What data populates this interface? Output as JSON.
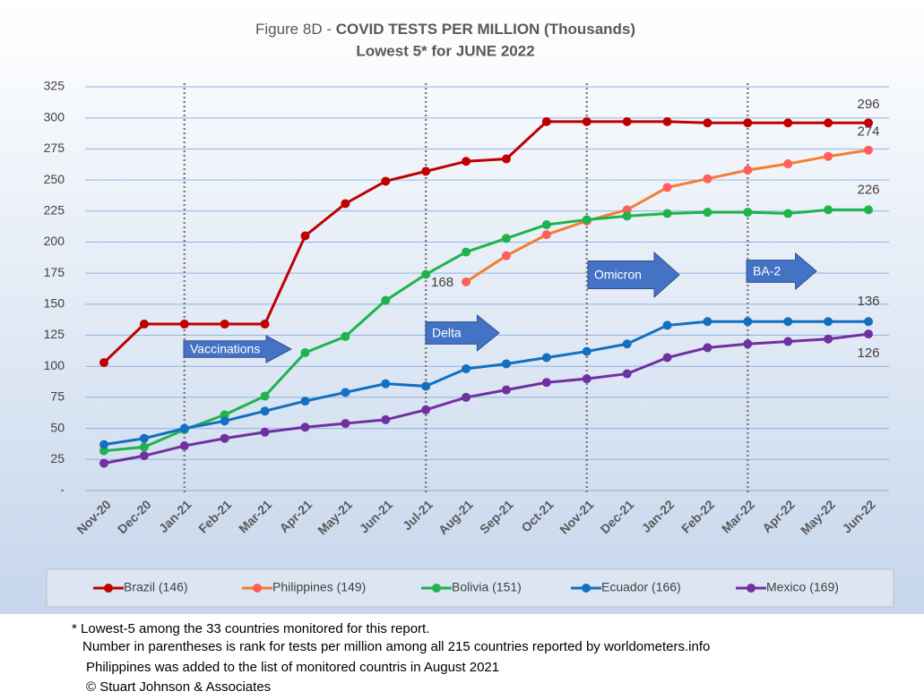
{
  "chart_data": {
    "type": "line",
    "title_prefix": "Figure 8D - ",
    "title": "COVID TESTS PER MILLION (Thousands)",
    "subtitle": "Lowest 5* for JUNE  2022",
    "categories": [
      "Nov-20",
      "Dec-20",
      "Jan-21",
      "Feb-21",
      "Mar-21",
      "Apr-21",
      "May-21",
      "Jun-21",
      "Jul-21",
      "Aug-21",
      "Sep-21",
      "Oct-21",
      "Nov-21",
      "Dec-21",
      "Jan-22",
      "Feb-22",
      "Mar-22",
      "Apr-22",
      "May-22",
      "Jun-22"
    ],
    "series": [
      {
        "name": "Brazil (146)",
        "color": "#c00000",
        "marker_color": "#c00000",
        "values": [
          103,
          134,
          134,
          134,
          134,
          205,
          231,
          249,
          257,
          265,
          267,
          297,
          297,
          297,
          297,
          296,
          296,
          296,
          296,
          296
        ],
        "value_labels": [
          null,
          null,
          null,
          null,
          null,
          null,
          null,
          null,
          null,
          null,
          null,
          null,
          null,
          null,
          null,
          null,
          null,
          null,
          null,
          "296"
        ]
      },
      {
        "name": "Philippines (149)",
        "color": "#f47e30",
        "marker_color": "#ff5f5a",
        "values": [
          null,
          null,
          null,
          null,
          null,
          null,
          null,
          null,
          null,
          168,
          189,
          206,
          217,
          226,
          244,
          251,
          258,
          263,
          269,
          274
        ],
        "value_labels": [
          null,
          null,
          null,
          null,
          null,
          null,
          null,
          null,
          null,
          "168",
          null,
          null,
          null,
          null,
          null,
          null,
          null,
          null,
          null,
          "274"
        ]
      },
      {
        "name": "Bolivia (151)",
        "color": "#1fb34c",
        "marker_color": "#1fb34c",
        "values": [
          32,
          35,
          49,
          61,
          76,
          111,
          124,
          153,
          174,
          192,
          203,
          214,
          218,
          221,
          223,
          224,
          224,
          223,
          226,
          226
        ],
        "value_labels": [
          null,
          null,
          null,
          null,
          null,
          null,
          null,
          null,
          null,
          null,
          null,
          null,
          null,
          null,
          null,
          null,
          null,
          null,
          null,
          "226"
        ]
      },
      {
        "name": "Ecuador (166)",
        "color": "#1170c0",
        "marker_color": "#1170c0",
        "values": [
          37,
          42,
          50,
          56,
          64,
          72,
          79,
          86,
          84,
          98,
          102,
          107,
          112,
          118,
          133,
          136,
          136,
          136,
          136,
          136
        ],
        "value_labels": [
          null,
          null,
          null,
          null,
          null,
          null,
          null,
          null,
          null,
          null,
          null,
          null,
          null,
          null,
          null,
          null,
          null,
          null,
          null,
          "136"
        ]
      },
      {
        "name": "Mexico (169)",
        "color": "#7030a0",
        "marker_color": "#7030a0",
        "values": [
          22,
          28,
          36,
          42,
          47,
          51,
          54,
          57,
          65,
          75,
          81,
          87,
          90,
          94,
          107,
          115,
          118,
          120,
          122,
          126
        ],
        "value_labels": [
          null,
          null,
          null,
          null,
          null,
          null,
          null,
          null,
          null,
          null,
          null,
          null,
          null,
          null,
          null,
          null,
          null,
          null,
          null,
          "126"
        ]
      }
    ],
    "ylim": [
      0,
      325
    ],
    "yticks": [
      {
        "value": 0,
        "label": "-"
      },
      25,
      50,
      75,
      100,
      125,
      150,
      175,
      200,
      225,
      250,
      275,
      300,
      325
    ],
    "grid": true,
    "legend": "bottom",
    "events": [
      {
        "at": "Jan-21",
        "text": "Vaccinations"
      },
      {
        "at": "Jul-21",
        "text": "Delta"
      },
      {
        "at": "Nov-21",
        "text": "Omicron"
      },
      {
        "at": "Mar-22",
        "text": "BA-2"
      }
    ],
    "notes": [
      "* Lowest-5 among the 33 countries monitored for this report.",
      "Number in parentheses is rank for tests per million among all 215 countries reported by worldometers.info",
      "Philippines  was added to the list of monitored countris in August 2021",
      "© Stuart Johnson & Associates"
    ]
  }
}
